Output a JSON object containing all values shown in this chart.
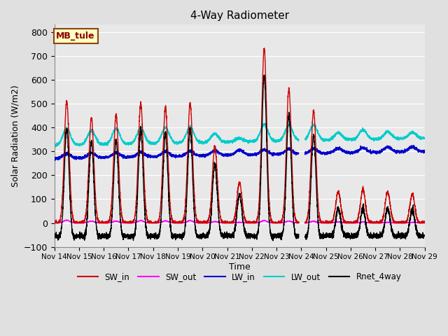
{
  "title": "4-Way Radiometer",
  "xlabel": "Time",
  "ylabel": "Solar Radiation (W/m2)",
  "ylim": [
    -100,
    830
  ],
  "yticks": [
    -100,
    0,
    100,
    200,
    300,
    400,
    500,
    600,
    700,
    800
  ],
  "annotation_text": "MB_tule",
  "annotation_bg": "#ffffc0",
  "annotation_border": "#8b4513",
  "series_colors": {
    "SW_in": "#cc0000",
    "SW_out": "#ff00ff",
    "LW_in": "#0000cc",
    "LW_out": "#00cccc",
    "Rnet_4way": "#000000"
  },
  "x_tick_labels": [
    "Nov 14",
    "Nov 15",
    "Nov 16",
    "Nov 17",
    "Nov 18",
    "Nov 19",
    "Nov 20",
    "Nov 21",
    "Nov 22",
    "Nov 23",
    "Nov 24",
    "Nov 25",
    "Nov 26",
    "Nov 27",
    "Nov 28",
    "Nov 29"
  ],
  "background_color": "#e0e0e0",
  "plot_bg": "#e8e8e8",
  "grid_color": "#ffffff",
  "figsize": [
    6.4,
    4.8
  ],
  "dpi": 100
}
